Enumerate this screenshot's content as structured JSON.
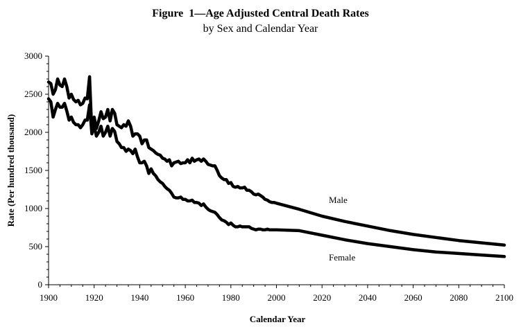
{
  "chart_data": {
    "type": "line",
    "title": "Figure  1—Age Adjusted Central Death Rates",
    "subtitle": "by Sex and Calendar Year",
    "xlabel": "Calendar Year",
    "ylabel": "Rate (Per hundred thousand)",
    "xlim": [
      1900,
      2100
    ],
    "ylim": [
      0,
      3000
    ],
    "xticks": [
      1900,
      1920,
      1940,
      1960,
      1980,
      2000,
      2020,
      2040,
      2060,
      2080,
      2100
    ],
    "yticks": [
      0,
      500,
      1000,
      1500,
      2000,
      2500,
      3000
    ],
    "grid": false,
    "legend": "none",
    "line_color": "#000000",
    "series": [
      {
        "name": "Male",
        "x": [
          1900,
          1901,
          1902,
          1903,
          1904,
          1905,
          1906,
          1907,
          1908,
          1909,
          1910,
          1911,
          1912,
          1913,
          1914,
          1915,
          1916,
          1917,
          1918,
          1919,
          1920,
          1921,
          1922,
          1923,
          1924,
          1925,
          1926,
          1927,
          1928,
          1929,
          1930,
          1931,
          1932,
          1933,
          1934,
          1935,
          1936,
          1937,
          1938,
          1939,
          1940,
          1941,
          1942,
          1943,
          1944,
          1945,
          1946,
          1947,
          1948,
          1949,
          1950,
          1951,
          1952,
          1953,
          1954,
          1955,
          1956,
          1957,
          1958,
          1959,
          1960,
          1961,
          1962,
          1963,
          1964,
          1965,
          1966,
          1967,
          1968,
          1969,
          1970,
          1971,
          1972,
          1973,
          1974,
          1975,
          1976,
          1977,
          1978,
          1979,
          1980,
          1981,
          1982,
          1983,
          1984,
          1985,
          1986,
          1987,
          1988,
          1989,
          1990,
          1991,
          1992,
          1993,
          1994,
          1995,
          1996,
          1997,
          1998,
          1999,
          2000,
          2010,
          2020,
          2030,
          2040,
          2050,
          2060,
          2070,
          2080,
          2090,
          2100
        ],
        "y": [
          2660,
          2640,
          2500,
          2560,
          2700,
          2620,
          2600,
          2700,
          2600,
          2450,
          2500,
          2430,
          2400,
          2420,
          2360,
          2380,
          2450,
          2440,
          2730,
          2000,
          2200,
          2050,
          2150,
          2270,
          2180,
          2200,
          2300,
          2150,
          2300,
          2250,
          2100,
          2080,
          2060,
          2100,
          2080,
          2150,
          2080,
          1950,
          1980,
          1980,
          1950,
          1850,
          1900,
          1900,
          1800,
          1780,
          1760,
          1730,
          1710,
          1700,
          1660,
          1650,
          1620,
          1640,
          1560,
          1600,
          1610,
          1620,
          1590,
          1600,
          1600,
          1640,
          1600,
          1660,
          1620,
          1640,
          1650,
          1620,
          1650,
          1620,
          1580,
          1570,
          1560,
          1560,
          1500,
          1430,
          1400,
          1380,
          1380,
          1330,
          1340,
          1290,
          1280,
          1290,
          1270,
          1270,
          1280,
          1240,
          1240,
          1220,
          1190,
          1180,
          1190,
          1170,
          1150,
          1120,
          1110,
          1090,
          1080,
          1080,
          1070,
          990,
          900,
          830,
          770,
          710,
          660,
          620,
          580,
          550,
          520
        ]
      },
      {
        "name": "Female",
        "x": [
          1900,
          1901,
          1902,
          1903,
          1904,
          1905,
          1906,
          1907,
          1908,
          1909,
          1910,
          1911,
          1912,
          1913,
          1914,
          1915,
          1916,
          1917,
          1918,
          1919,
          1920,
          1921,
          1922,
          1923,
          1924,
          1925,
          1926,
          1927,
          1928,
          1929,
          1930,
          1931,
          1932,
          1933,
          1934,
          1935,
          1936,
          1937,
          1938,
          1939,
          1940,
          1941,
          1942,
          1943,
          1944,
          1945,
          1946,
          1947,
          1948,
          1949,
          1950,
          1951,
          1952,
          1953,
          1954,
          1955,
          1956,
          1957,
          1958,
          1959,
          1960,
          1961,
          1962,
          1963,
          1964,
          1965,
          1966,
          1967,
          1968,
          1969,
          1970,
          1971,
          1972,
          1973,
          1974,
          1975,
          1976,
          1977,
          1978,
          1979,
          1980,
          1981,
          1982,
          1983,
          1984,
          1985,
          1986,
          1987,
          1988,
          1989,
          1990,
          1991,
          1992,
          1993,
          1994,
          1995,
          1996,
          1997,
          1998,
          1999,
          2000,
          2010,
          2020,
          2030,
          2040,
          2050,
          2060,
          2070,
          2080,
          2090,
          2100
        ],
        "y": [
          2440,
          2400,
          2200,
          2300,
          2380,
          2330,
          2330,
          2380,
          2280,
          2160,
          2200,
          2130,
          2100,
          2100,
          2060,
          2100,
          2160,
          2160,
          2360,
          1980,
          2080,
          1950,
          2000,
          2080,
          1950,
          2000,
          2080,
          1950,
          2050,
          2010,
          1880,
          1850,
          1800,
          1800,
          1750,
          1780,
          1760,
          1720,
          1780,
          1680,
          1600,
          1600,
          1620,
          1560,
          1460,
          1520,
          1460,
          1430,
          1380,
          1350,
          1330,
          1290,
          1260,
          1240,
          1200,
          1150,
          1140,
          1140,
          1150,
          1120,
          1120,
          1100,
          1100,
          1110,
          1080,
          1080,
          1070,
          1040,
          1060,
          1020,
          990,
          970,
          960,
          950,
          920,
          880,
          850,
          840,
          820,
          790,
          810,
          780,
          760,
          760,
          770,
          760,
          760,
          760,
          760,
          740,
          730,
          720,
          730,
          730,
          720,
          720,
          730,
          720,
          720,
          720,
          720,
          710,
          650,
          590,
          540,
          500,
          460,
          430,
          410,
          390,
          370
        ]
      }
    ],
    "annotations": [
      {
        "text": "Male",
        "x": 2023,
        "y": 1075
      },
      {
        "text": "Female",
        "x": 2023,
        "y": 318
      }
    ]
  }
}
